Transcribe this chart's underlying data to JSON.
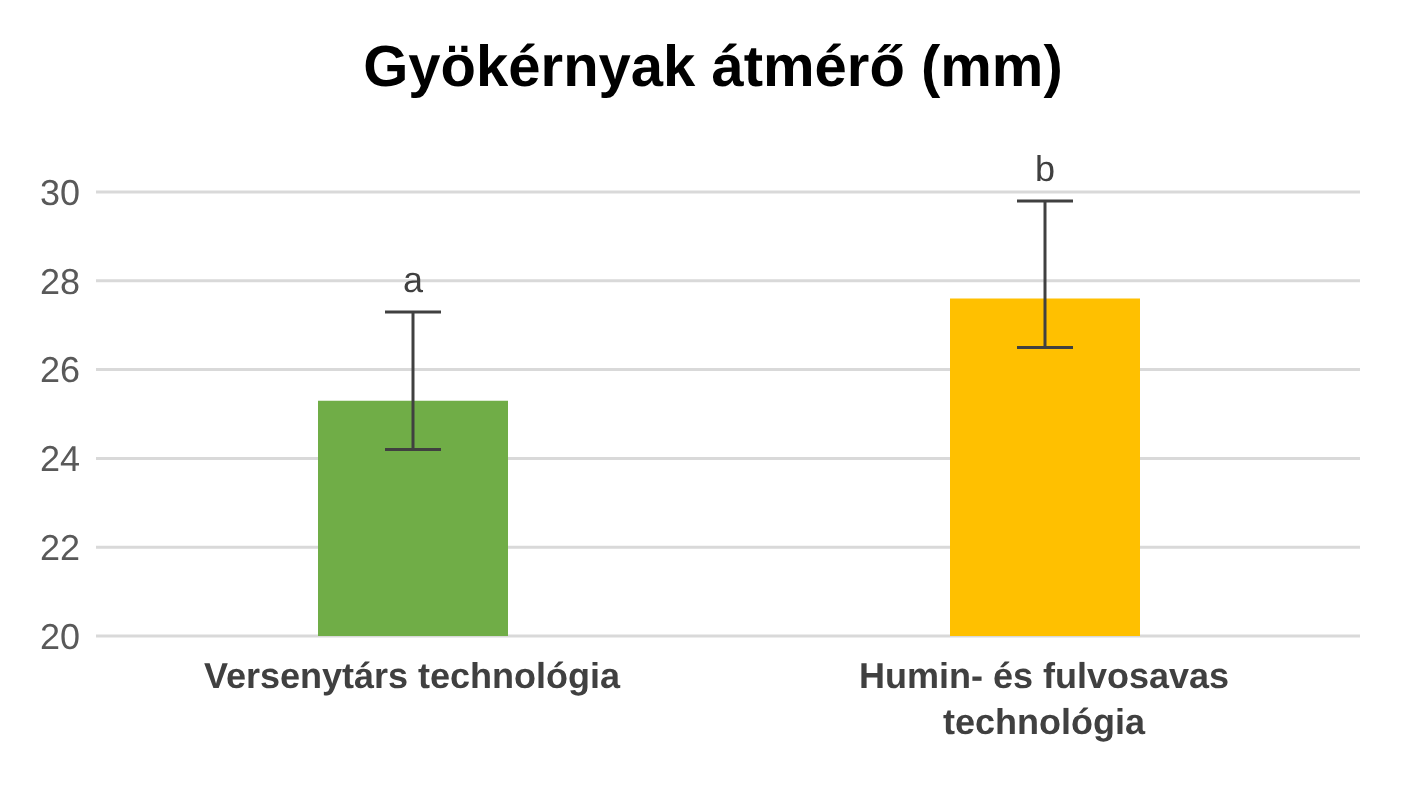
{
  "chart_data": {
    "type": "bar",
    "title": "Gyökérnyak átmérő (mm)",
    "categories": [
      "Versenytárs technológia",
      "Humin- és fulvosavas technológia"
    ],
    "values": [
      25.3,
      27.6
    ],
    "colors": [
      "#70ad47",
      "#ffc000"
    ],
    "errors": [
      [
        24.2,
        27.3
      ],
      [
        26.5,
        29.8
      ]
    ],
    "annotations": [
      "a",
      "b"
    ],
    "ylim": [
      20,
      30
    ],
    "yticks": [
      20,
      22,
      24,
      26,
      28,
      30
    ],
    "grid": "y"
  }
}
